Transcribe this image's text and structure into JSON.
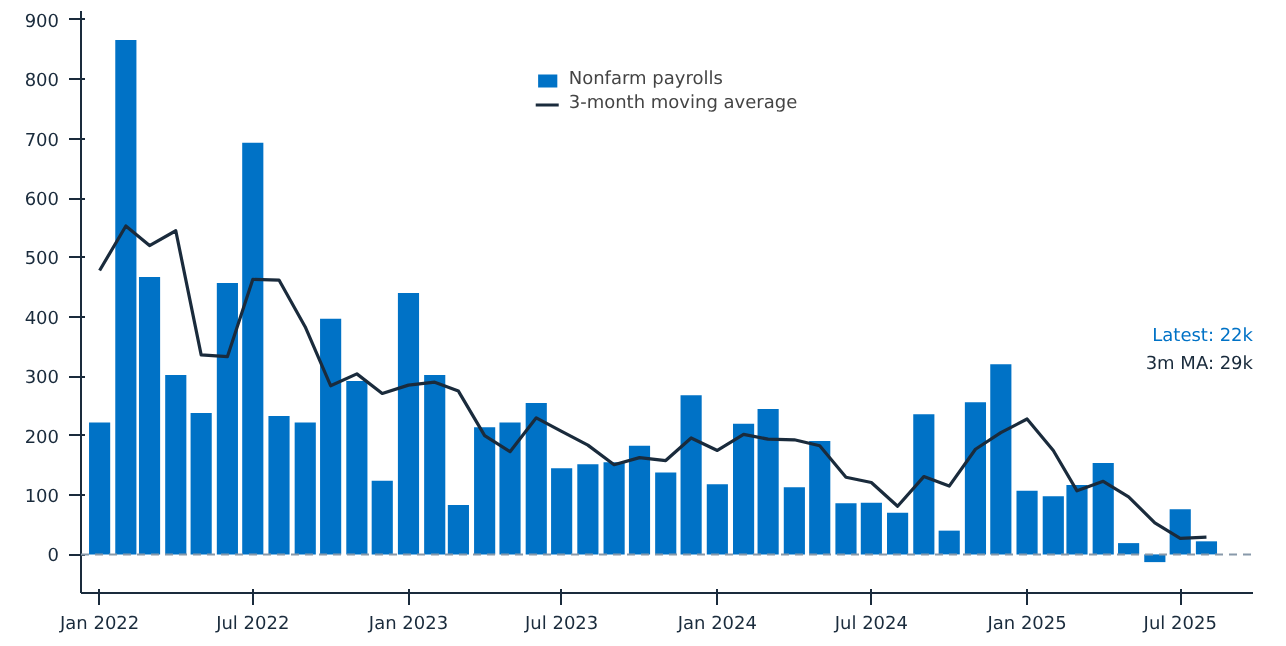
{
  "chart_data": {
    "type": "bar",
    "x": [
      "2022-01",
      "2022-02",
      "2022-03",
      "2022-04",
      "2022-05",
      "2022-06",
      "2022-07",
      "2022-08",
      "2022-09",
      "2022-10",
      "2022-11",
      "2022-12",
      "2023-01",
      "2023-02",
      "2023-03",
      "2023-04",
      "2023-05",
      "2023-06",
      "2023-07",
      "2023-08",
      "2023-09",
      "2023-10",
      "2023-11",
      "2023-12",
      "2024-01",
      "2024-02",
      "2024-03",
      "2024-04",
      "2024-05",
      "2024-06",
      "2024-07",
      "2024-08",
      "2024-09",
      "2024-10",
      "2024-11",
      "2024-12",
      "2025-01",
      "2025-02",
      "2025-03",
      "2025-04",
      "2025-05",
      "2025-06",
      "2025-07",
      "2025-08"
    ],
    "series": [
      {
        "name": "Nonfarm payrolls",
        "color": "#0072c6",
        "values": [
          222,
          866,
          467,
          302,
          238,
          457,
          693,
          233,
          222,
          397,
          292,
          124,
          440,
          302,
          83,
          214,
          222,
          255,
          145,
          152,
          155,
          183,
          138,
          268,
          118,
          220,
          245,
          113,
          191,
          86,
          87,
          70,
          236,
          40,
          256,
          320,
          107,
          98,
          117,
          154,
          19,
          -13,
          76,
          22
        ]
      },
      {
        "name": "3-month moving average",
        "type": "line",
        "color": "#1a2b3c",
        "values": [
          478,
          553,
          520,
          545,
          336,
          333,
          463,
          462,
          383,
          284,
          304,
          271,
          285,
          290,
          275,
          200,
          173,
          230,
          207,
          184,
          151,
          163,
          158,
          196,
          175,
          202,
          194,
          193,
          183,
          130,
          121,
          81,
          131,
          115,
          177,
          205,
          228,
          175,
          107,
          123,
          97,
          53,
          27,
          29
        ]
      }
    ],
    "xlim": [
      "2021-12-10",
      "2025-09-25"
    ],
    "xticks": [
      {
        "value": "2022-01",
        "label": "Jan 2022"
      },
      {
        "value": "2022-07",
        "label": "Jul 2022"
      },
      {
        "value": "2023-01",
        "label": "Jan 2023"
      },
      {
        "value": "2023-07",
        "label": "Jul 2023"
      },
      {
        "value": "2024-01",
        "label": "Jan 2024"
      },
      {
        "value": "2024-07",
        "label": "Jul 2024"
      },
      {
        "value": "2025-01",
        "label": "Jan 2025"
      },
      {
        "value": "2025-07",
        "label": "Jul 2025"
      }
    ],
    "ylim": [
      -65,
      915
    ],
    "yticks": [
      0,
      100,
      200,
      300,
      400,
      500,
      600,
      700,
      800,
      900
    ],
    "ref_lines": [
      {
        "axis": "y",
        "value": 0,
        "color": "#8899aa",
        "line_style": "dashed"
      }
    ],
    "annotations": [
      "Latest: 22k",
      "3m MA: 29k"
    ],
    "grid": false,
    "legend": "top"
  }
}
